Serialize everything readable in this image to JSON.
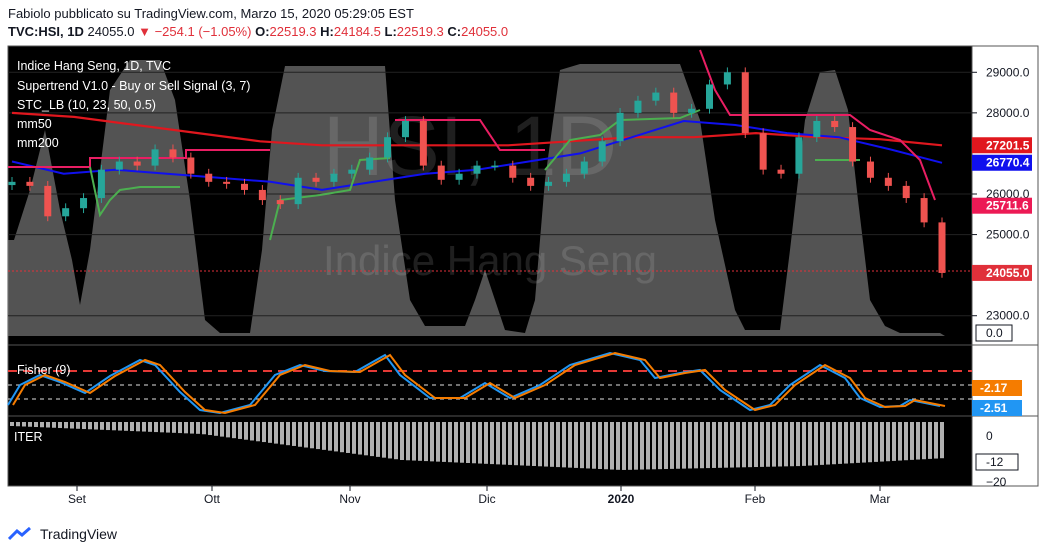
{
  "header": {
    "publisher": "Fabiolo pubblicato su TradingView.com, Marzo 15, 2020 05:29:05 EST",
    "symbol": "TVC:HSI, 1D",
    "last": "24055.0",
    "change": "−254.1 (−1.05%)",
    "o_label": "O:",
    "o": "22519.3",
    "h_label": "H:",
    "h": "24184.5",
    "l_label": "L:",
    "l": "22519.3",
    "c_label": "C:",
    "c": "24055.0"
  },
  "legend": {
    "title": "Indice Hang Seng, 1D, TVC",
    "line2": "Supertrend V1.0 - Buy or Sell Signal (3, 7)",
    "line3": "STC_LB (10, 23, 50, 0.5)",
    "line4": "mm50",
    "line5": "mm200"
  },
  "watermark": {
    "symbol": "HSI, 1D",
    "name": "Indice Hang Seng"
  },
  "price_axis": {
    "ticks": [
      "29000.0",
      "28000.0",
      "26000.0",
      "25000.0",
      "23000.0"
    ],
    "tick_values": [
      29000,
      28000,
      26000,
      25000,
      23000
    ],
    "labels": [
      {
        "text": "27201.5",
        "value": 27201.5,
        "color": "#e0171e"
      },
      {
        "text": "26770.4",
        "value": 26770.4,
        "color": "#1010ee"
      },
      {
        "text": "25711.6",
        "value": 25711.6,
        "color": "#ec1a55"
      },
      {
        "text": "24055.0",
        "value": 24055.0,
        "color": "#e0303a"
      }
    ],
    "stc_label": "0.0"
  },
  "fisher": {
    "title": "Fisher (9)",
    "labels": [
      {
        "text": "-2.17",
        "color": "#f57c00"
      },
      {
        "text": "-2.51",
        "color": "#2196f3"
      }
    ]
  },
  "iter": {
    "title": "ITER",
    "tick0": "0",
    "label": "-12",
    "tick_low": "−20"
  },
  "time_axis": [
    "Set",
    "Ott",
    "Nov",
    "Dic",
    "2020",
    "Feb",
    "Mar"
  ],
  "footer": {
    "brand": "TradingView"
  },
  "chart_data": {
    "type": "candlestick",
    "title": "Indice Hang Seng, 1D, TVC",
    "ylim": [
      22500,
      29500
    ],
    "colors": {
      "up": "#26a69a",
      "down": "#ef5350",
      "mm50": "#1010ee",
      "mm200": "#e0171e",
      "supertrend_up": "#4caf50",
      "supertrend_down": "#e91e63",
      "stc": "#808080"
    },
    "close_approx": [
      26300,
      26200,
      25450,
      25650,
      25900,
      26600,
      26800,
      26700,
      27100,
      26900,
      26500,
      26300,
      26250,
      26100,
      25850,
      25750,
      26400,
      26300,
      26500,
      26600,
      26900,
      27400,
      27800,
      26700,
      26350,
      26500,
      26700,
      26700,
      26400,
      26200,
      26300,
      26500,
      26800,
      27300,
      28000,
      28300,
      28500,
      28000,
      28100,
      28700,
      29000,
      27500,
      26600,
      26500,
      27400,
      27800,
      27650,
      26800,
      26400,
      26200,
      25900,
      25300,
      24055
    ],
    "mm50_approx": [
      26800,
      26500,
      26600,
      26500,
      26400,
      26300,
      26100,
      26300,
      26500,
      26600,
      26800,
      27000,
      27400,
      27800,
      27700,
      27500,
      27400,
      27100,
      26770
    ],
    "mm200_approx": [
      28000,
      27900,
      27700,
      27500,
      27300,
      27200,
      27200,
      27200,
      27200,
      27300,
      27400,
      27400,
      27500,
      27400,
      27350,
      27201.5
    ]
  }
}
